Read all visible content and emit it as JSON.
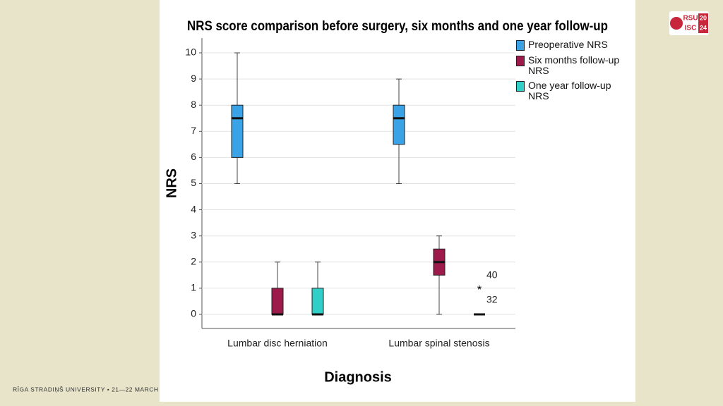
{
  "chart_data": {
    "type": "box",
    "title": "NRS score comparison before surgery, six months and one year follow-up",
    "y_label": "NRS",
    "x_label": "Diagnosis",
    "categories": [
      "Lumbar disc herniation",
      "Lumbar spinal stenosis"
    ],
    "ylim": [
      0,
      10
    ],
    "yticks": [
      0,
      1,
      2,
      3,
      4,
      5,
      6,
      7,
      8,
      9,
      10
    ],
    "grid": true,
    "series": [
      {
        "name": "Preoperative NRS",
        "color": "#3aa2e6",
        "boxes": [
          {
            "min": 5,
            "q1": 6,
            "median": 7.5,
            "q3": 8,
            "max": 10
          },
          {
            "min": 5,
            "q1": 6.5,
            "median": 7.5,
            "q3": 8,
            "max": 9
          }
        ]
      },
      {
        "name": "Six months follow-up NRS",
        "color": "#9c1b4b",
        "boxes": [
          {
            "min": 0,
            "q1": 0,
            "median": 0,
            "q3": 1,
            "max": 2
          },
          {
            "min": 0,
            "q1": 1.5,
            "median": 2,
            "q3": 2.5,
            "max": 3
          }
        ]
      },
      {
        "name": "One year follow-up NRS",
        "color": "#30cfc8",
        "boxes": [
          {
            "min": 0,
            "q1": 0,
            "median": 0,
            "q3": 1,
            "max": 2
          },
          {
            "min": 0,
            "q1": 0,
            "median": 0,
            "q3": 0,
            "max": 0,
            "outliers": [
              {
                "value": 1,
                "label": "40"
              },
              {
                "value": 1,
                "label": "32"
              }
            ]
          }
        ]
      }
    ]
  },
  "footer": "RĪGA STRADIŅŠ UNIVERSITY  •  21—22 MARCH",
  "logo": {
    "left": [
      "RSU",
      "ISC"
    ],
    "right": [
      "20",
      "24"
    ]
  }
}
